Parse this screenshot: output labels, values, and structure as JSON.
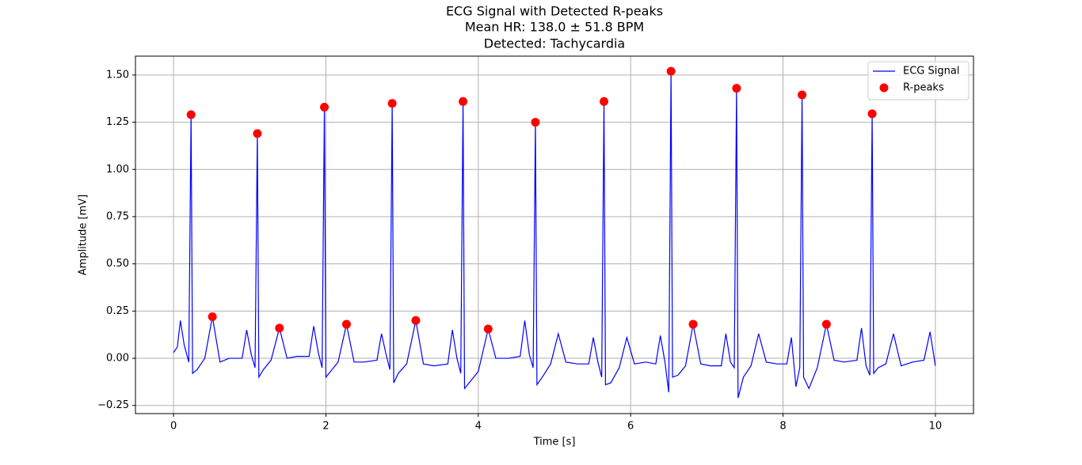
{
  "chart_data": {
    "type": "line",
    "title": "ECG Signal with Detected R-peaks",
    "subtitle": [
      "Mean HR: 138.0 ± 51.8 BPM",
      "Detected: Tachycardia"
    ],
    "x_label": "Time [s]",
    "y_label": "Amplitude [mV]",
    "xlim": [
      -0.5,
      10.5
    ],
    "ylim": [
      -0.293,
      1.6
    ],
    "xticks": [
      0,
      2,
      4,
      6,
      8,
      10
    ],
    "yticks": [
      {
        "value": -0.25,
        "label": "−0.25"
      },
      {
        "value": 0,
        "label": "0.00"
      },
      0.25,
      {
        "value": 0.5,
        "label": "0.50"
      },
      0.75,
      {
        "value": 1,
        "label": "1.00"
      },
      1.25,
      {
        "value": 1.5,
        "label": "1.50"
      }
    ],
    "grid": true,
    "legend": "upper right",
    "series": [
      {
        "name": "ECG Signal",
        "color": "#0000ff",
        "kind": "line",
        "x": [
          0,
          0.05,
          0.09,
          0.14,
          0.2,
          0.23,
          0.25,
          0.31,
          0.41,
          0.51,
          0.61,
          0.73,
          0.9,
          0.96,
          1.02,
          1.07,
          1.1,
          1.12,
          1.18,
          1.28,
          1.39,
          1.49,
          1.62,
          1.78,
          1.84,
          1.9,
          1.95,
          1.98,
          2.0,
          2.06,
          2.16,
          2.27,
          2.37,
          2.5,
          2.67,
          2.73,
          2.79,
          2.84,
          2.87,
          2.89,
          2.95,
          3.06,
          3.18,
          3.28,
          3.42,
          3.6,
          3.66,
          3.72,
          3.77,
          3.8,
          3.82,
          3.88,
          4.0,
          4.13,
          4.23,
          4.4,
          4.55,
          4.61,
          4.67,
          4.72,
          4.75,
          4.77,
          4.84,
          4.95,
          5.05,
          5.15,
          5.3,
          5.45,
          5.51,
          5.57,
          5.62,
          5.65,
          5.67,
          5.74,
          5.85,
          5.95,
          6.05,
          6.2,
          6.33,
          6.39,
          6.45,
          6.5,
          6.53,
          6.55,
          6.62,
          6.72,
          6.82,
          6.92,
          7.05,
          7.19,
          7.25,
          7.31,
          7.36,
          7.39,
          7.41,
          7.48,
          7.58,
          7.68,
          7.78,
          7.92,
          8.05,
          8.11,
          8.17,
          8.22,
          8.25,
          8.27,
          8.34,
          8.45,
          8.57,
          8.67,
          8.8,
          8.97,
          9.03,
          9.09,
          9.14,
          9.17,
          9.19,
          9.25,
          9.35,
          9.45,
          9.55,
          9.7,
          9.85,
          9.93,
          10
        ],
        "values": [
          0.03,
          0.06,
          0.2,
          0.07,
          -0.02,
          1.29,
          -0.08,
          -0.06,
          0,
          0.22,
          -0.02,
          0,
          0,
          0.15,
          0.02,
          -0.05,
          1.19,
          -0.1,
          -0.06,
          -0.01,
          0.16,
          0,
          0.01,
          0.01,
          0.17,
          0.03,
          -0.05,
          1.33,
          -0.1,
          -0.07,
          -0.02,
          0.18,
          -0.02,
          -0.02,
          -0.01,
          0.13,
          0.02,
          -0.06,
          1.35,
          -0.13,
          -0.08,
          -0.03,
          0.2,
          -0.03,
          -0.04,
          -0.03,
          0.15,
          0,
          -0.08,
          1.36,
          -0.16,
          -0.13,
          -0.07,
          0.155,
          0,
          0,
          0.01,
          0.2,
          0.02,
          -0.05,
          1.25,
          -0.14,
          -0.1,
          -0.03,
          0.13,
          -0.02,
          -0.03,
          -0.03,
          0.11,
          -0.02,
          -0.1,
          1.36,
          -0.14,
          -0.13,
          -0.05,
          0.11,
          -0.03,
          -0.02,
          -0.03,
          0.12,
          -0.02,
          -0.18,
          1.52,
          -0.1,
          -0.09,
          -0.04,
          0.18,
          -0.03,
          -0.04,
          -0.04,
          0.13,
          -0.02,
          -0.05,
          1.43,
          -0.21,
          -0.1,
          -0.04,
          0.13,
          -0.02,
          -0.03,
          -0.03,
          0.11,
          -0.15,
          -0.05,
          1.395,
          -0.1,
          -0.16,
          -0.05,
          0.18,
          -0.01,
          -0.02,
          -0.01,
          0.16,
          -0.04,
          -0.09,
          1.295,
          -0.08,
          -0.05,
          -0.03,
          0.13,
          -0.04,
          -0.02,
          -0.01,
          0.14,
          -0.04
        ]
      },
      {
        "name": "R-peaks",
        "color": "#ff0000",
        "kind": "scatter",
        "x": [
          0.23,
          0.51,
          1.1,
          1.39,
          1.98,
          2.27,
          2.87,
          3.18,
          3.8,
          4.13,
          4.75,
          5.65,
          6.53,
          6.82,
          7.39,
          8.25,
          8.57,
          9.17
        ],
        "values": [
          1.29,
          0.22,
          1.19,
          0.16,
          1.33,
          0.18,
          1.35,
          0.2,
          1.36,
          0.155,
          1.25,
          1.36,
          1.52,
          0.18,
          1.43,
          1.395,
          0.18,
          1.295
        ]
      }
    ]
  }
}
